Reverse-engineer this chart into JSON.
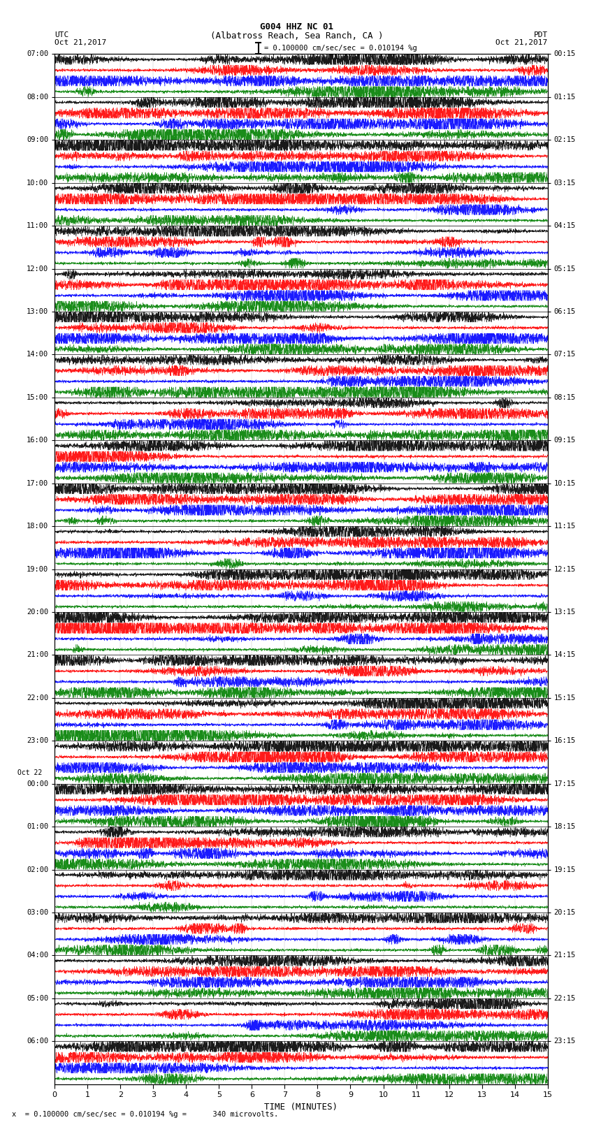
{
  "title_line1": "G004 HHZ NC 01",
  "title_line2": "(Albatross Reach, Sea Ranch, CA )",
  "label_left_top": "UTC",
  "label_right_top": "PDT",
  "label_left_date": "Oct 21,2017",
  "label_right_date": "Oct 21,2017",
  "scale_text": "= 0.100000 cm/sec/sec = 0.010194 %g",
  "footer_text": "x  = 0.100000 cm/sec/sec = 0.010194 %g =      340 microvolts.",
  "xlabel": "TIME (MINUTES)",
  "xlim": [
    0,
    15
  ],
  "xticks": [
    0,
    1,
    2,
    3,
    4,
    5,
    6,
    7,
    8,
    9,
    10,
    11,
    12,
    13,
    14,
    15
  ],
  "num_hours": 24,
  "traces_per_hour": 4,
  "colors_cycle": [
    "black",
    "red",
    "blue",
    "green"
  ],
  "left_times": [
    "07:00",
    "08:00",
    "09:00",
    "10:00",
    "11:00",
    "12:00",
    "13:00",
    "14:00",
    "15:00",
    "16:00",
    "17:00",
    "18:00",
    "19:00",
    "20:00",
    "21:00",
    "22:00",
    "23:00",
    "00:00",
    "01:00",
    "02:00",
    "03:00",
    "04:00",
    "05:00",
    "06:00"
  ],
  "oct22_hour_idx": 17,
  "right_times": [
    "00:15",
    "01:15",
    "02:15",
    "03:15",
    "04:15",
    "05:15",
    "06:15",
    "07:15",
    "08:15",
    "09:15",
    "10:15",
    "11:15",
    "12:15",
    "13:15",
    "14:15",
    "15:15",
    "16:15",
    "17:15",
    "18:15",
    "19:15",
    "20:15",
    "21:15",
    "22:15",
    "23:15"
  ],
  "background_color": "white",
  "trace_amplitude": 0.42,
  "noise_amplitude": 0.06,
  "num_points": 4000,
  "seed": 42,
  "fig_width": 8.5,
  "fig_height": 16.13,
  "dpi": 100
}
